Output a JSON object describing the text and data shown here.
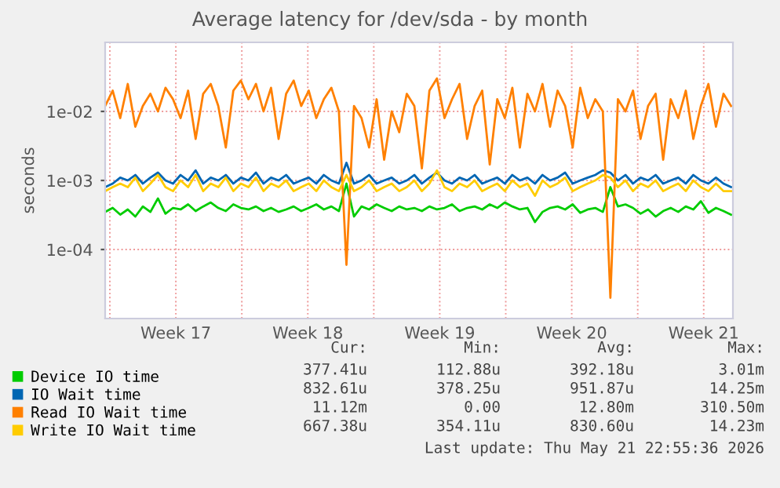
{
  "chart_data": {
    "type": "line",
    "title": "Average latency for /dev/sda - by month",
    "ylabel": "seconds",
    "log": "y",
    "grid": true,
    "legend": "bottom left",
    "ylim": [
      1e-05,
      0.1
    ],
    "yticks": [
      {
        "value": 0.0001,
        "label": "1e-04"
      },
      {
        "value": 0.001,
        "label": "1e-03"
      },
      {
        "value": 0.01,
        "label": "1e-02"
      }
    ],
    "xlim": [
      "2026-04-19T18:00",
      "2026-05-23T01:12"
    ],
    "xticks": [
      {
        "value": "2026-04-20",
        "label": null
      },
      {
        "value": "2026-04-23T12:00",
        "label": "Week 17"
      },
      {
        "value": "2026-04-27",
        "label": null
      },
      {
        "value": "2026-04-30T12:00",
        "label": "Week 18"
      },
      {
        "value": "2026-05-04",
        "label": null
      },
      {
        "value": "2026-05-07T12:00",
        "label": "Week 19"
      },
      {
        "value": "2026-05-11",
        "label": null
      },
      {
        "value": "2026-05-14T12:00",
        "label": "Week 20"
      },
      {
        "value": "2026-05-18",
        "label": null
      },
      {
        "value": "2026-05-21T12:00",
        "label": "Week 21"
      }
    ],
    "x": [
      "2026-04-19T18:00",
      "2026-04-20T03:36",
      "2026-04-20T13:12",
      "2026-04-20T22:48",
      "2026-04-21T08:24",
      "2026-04-21T18:00",
      "2026-04-22T03:36",
      "2026-04-22T13:12",
      "2026-04-22T22:48",
      "2026-04-23T08:24",
      "2026-04-23T18:00",
      "2026-04-24T03:36",
      "2026-04-24T13:12",
      "2026-04-24T22:48",
      "2026-04-25T08:24",
      "2026-04-25T18:00",
      "2026-04-26T03:36",
      "2026-04-26T13:12",
      "2026-04-26T22:48",
      "2026-04-27T08:24",
      "2026-04-27T18:00",
      "2026-04-28T03:36",
      "2026-04-28T13:12",
      "2026-04-28T22:48",
      "2026-04-29T08:24",
      "2026-04-29T18:00",
      "2026-04-30T03:36",
      "2026-04-30T13:12",
      "2026-04-30T22:48",
      "2026-05-01T08:24",
      "2026-05-01T18:00",
      "2026-05-02T03:36",
      "2026-05-02T13:12",
      "2026-05-02T22:48",
      "2026-05-03T08:24",
      "2026-05-03T18:00",
      "2026-05-04T03:36",
      "2026-05-04T13:12",
      "2026-05-04T22:48",
      "2026-05-05T08:24",
      "2026-05-05T18:00",
      "2026-05-06T03:36",
      "2026-05-06T13:12",
      "2026-05-06T22:48",
      "2026-05-07T08:24",
      "2026-05-07T18:00",
      "2026-05-08T03:36",
      "2026-05-08T13:12",
      "2026-05-08T22:48",
      "2026-05-09T08:24",
      "2026-05-09T18:00",
      "2026-05-10T03:36",
      "2026-05-10T13:12",
      "2026-05-10T22:48",
      "2026-05-11T08:24",
      "2026-05-11T18:00",
      "2026-05-12T03:36",
      "2026-05-12T13:12",
      "2026-05-12T22:48",
      "2026-05-13T08:24",
      "2026-05-13T18:00",
      "2026-05-14T03:36",
      "2026-05-14T13:12",
      "2026-05-14T22:48",
      "2026-05-15T08:24",
      "2026-05-15T18:00",
      "2026-05-16T03:36",
      "2026-05-16T13:12",
      "2026-05-16T22:48",
      "2026-05-17T08:24",
      "2026-05-17T18:00",
      "2026-05-18T03:36",
      "2026-05-18T13:12",
      "2026-05-18T22:48",
      "2026-05-19T08:24",
      "2026-05-19T18:00",
      "2026-05-20T03:36",
      "2026-05-20T13:12",
      "2026-05-20T22:48",
      "2026-05-21T08:24",
      "2026-05-21T18:00",
      "2026-05-22T03:36",
      "2026-05-22T13:12",
      "2026-05-22T22:48"
    ],
    "series": [
      {
        "name": "Device IO time",
        "color": "#00cc00",
        "values": [
          0.00035,
          0.0004,
          0.00032,
          0.00038,
          0.0003,
          0.00042,
          0.00035,
          0.00055,
          0.00033,
          0.0004,
          0.00038,
          0.00045,
          0.00036,
          0.00042,
          0.00048,
          0.0004,
          0.00036,
          0.00045,
          0.0004,
          0.00038,
          0.00042,
          0.00036,
          0.0004,
          0.00035,
          0.00038,
          0.00042,
          0.00036,
          0.0004,
          0.00045,
          0.00038,
          0.00042,
          0.00036,
          0.0009,
          0.0003,
          0.00042,
          0.00038,
          0.00045,
          0.0004,
          0.00036,
          0.00042,
          0.00038,
          0.0004,
          0.00036,
          0.00042,
          0.00038,
          0.0004,
          0.00045,
          0.00036,
          0.0004,
          0.00042,
          0.00038,
          0.00045,
          0.0004,
          0.00048,
          0.00042,
          0.00038,
          0.0004,
          0.00025,
          0.00035,
          0.0004,
          0.00042,
          0.00038,
          0.00045,
          0.00034,
          0.00038,
          0.0004,
          0.00035,
          0.0008,
          0.00042,
          0.00045,
          0.0004,
          0.00033,
          0.00038,
          0.0003,
          0.00036,
          0.0004,
          0.00035,
          0.00042,
          0.00038,
          0.0005,
          0.00034,
          0.0004,
          0.00036,
          0.00032
        ]
      },
      {
        "name": "IO Wait time",
        "color": "#0066b3",
        "values": [
          0.0008,
          0.0009,
          0.0011,
          0.001,
          0.0012,
          0.0009,
          0.0011,
          0.0013,
          0.001,
          0.0009,
          0.0012,
          0.001,
          0.0014,
          0.0009,
          0.0011,
          0.001,
          0.0012,
          0.0009,
          0.0011,
          0.001,
          0.0013,
          0.0009,
          0.0011,
          0.001,
          0.0012,
          0.0009,
          0.001,
          0.0011,
          0.0009,
          0.0012,
          0.001,
          0.0009,
          0.0018,
          0.0009,
          0.001,
          0.0012,
          0.0009,
          0.001,
          0.0011,
          0.0009,
          0.001,
          0.0012,
          0.0009,
          0.0011,
          0.0013,
          0.001,
          0.0009,
          0.0011,
          0.001,
          0.0012,
          0.0009,
          0.001,
          0.0011,
          0.0009,
          0.0012,
          0.001,
          0.0011,
          0.0009,
          0.0012,
          0.001,
          0.0011,
          0.0013,
          0.0009,
          0.001,
          0.0011,
          0.0012,
          0.0014,
          0.0013,
          0.001,
          0.0012,
          0.0009,
          0.0011,
          0.001,
          0.0012,
          0.0009,
          0.001,
          0.0011,
          0.0009,
          0.0012,
          0.001,
          0.0009,
          0.0011,
          0.0009,
          0.0008
        ]
      },
      {
        "name": "Read IO Wait time",
        "color": "#ff8000",
        "values": [
          0.012,
          0.02,
          0.008,
          0.025,
          0.006,
          0.012,
          0.018,
          0.01,
          0.022,
          0.015,
          0.008,
          0.02,
          0.004,
          0.018,
          0.025,
          0.012,
          0.003,
          0.02,
          0.028,
          0.015,
          0.025,
          0.01,
          0.022,
          0.004,
          0.018,
          0.028,
          0.012,
          0.02,
          0.008,
          0.015,
          0.022,
          0.01,
          6e-05,
          0.012,
          0.008,
          0.003,
          0.015,
          0.002,
          0.01,
          0.005,
          0.018,
          0.012,
          0.0015,
          0.02,
          0.03,
          0.008,
          0.015,
          0.025,
          0.004,
          0.012,
          0.02,
          0.0017,
          0.015,
          0.008,
          0.022,
          0.003,
          0.018,
          0.01,
          0.025,
          0.006,
          0.02,
          0.012,
          0.003,
          0.022,
          0.008,
          0.015,
          0.01,
          2e-05,
          0.015,
          0.01,
          0.02,
          0.004,
          0.012,
          0.018,
          0.002,
          0.015,
          0.008,
          0.02,
          0.004,
          0.012,
          0.025,
          0.006,
          0.018,
          0.012
        ]
      },
      {
        "name": "Write IO Wait time",
        "color": "#ffcc00",
        "values": [
          0.0007,
          0.0008,
          0.0009,
          0.0008,
          0.0011,
          0.0007,
          0.0009,
          0.0012,
          0.0008,
          0.0007,
          0.001,
          0.0008,
          0.0012,
          0.0007,
          0.0009,
          0.0008,
          0.0011,
          0.0007,
          0.0009,
          0.0008,
          0.0011,
          0.0007,
          0.0009,
          0.0008,
          0.001,
          0.0007,
          0.0008,
          0.0009,
          0.0007,
          0.001,
          0.0008,
          0.0007,
          0.0012,
          0.0007,
          0.0008,
          0.001,
          0.0007,
          0.0008,
          0.0009,
          0.0007,
          0.0008,
          0.001,
          0.0007,
          0.0009,
          0.0014,
          0.0008,
          0.0007,
          0.0009,
          0.0008,
          0.001,
          0.0007,
          0.0008,
          0.0009,
          0.0007,
          0.001,
          0.0008,
          0.0009,
          0.0006,
          0.001,
          0.0008,
          0.0009,
          0.0011,
          0.0007,
          0.0008,
          0.0009,
          0.001,
          0.0012,
          0.0011,
          0.0008,
          0.001,
          0.0007,
          0.0009,
          0.0008,
          0.001,
          0.0007,
          0.0008,
          0.0009,
          0.0007,
          0.001,
          0.0008,
          0.0007,
          0.0009,
          0.0007,
          0.0007
        ]
      }
    ],
    "annotations": [
      "Cur:",
      "Min:",
      "Avg:",
      "Max:",
      "377.41u",
      "112.88u",
      "392.18u",
      "3.01m",
      "832.61u",
      "378.25u",
      "951.87u",
      "14.25m",
      "11.12m",
      "0.00",
      "12.80m",
      "310.50m",
      "667.38u",
      "354.11u",
      "830.60u",
      "14.23m",
      "Last update: Thu May 21 22:55:36 2026"
    ]
  }
}
